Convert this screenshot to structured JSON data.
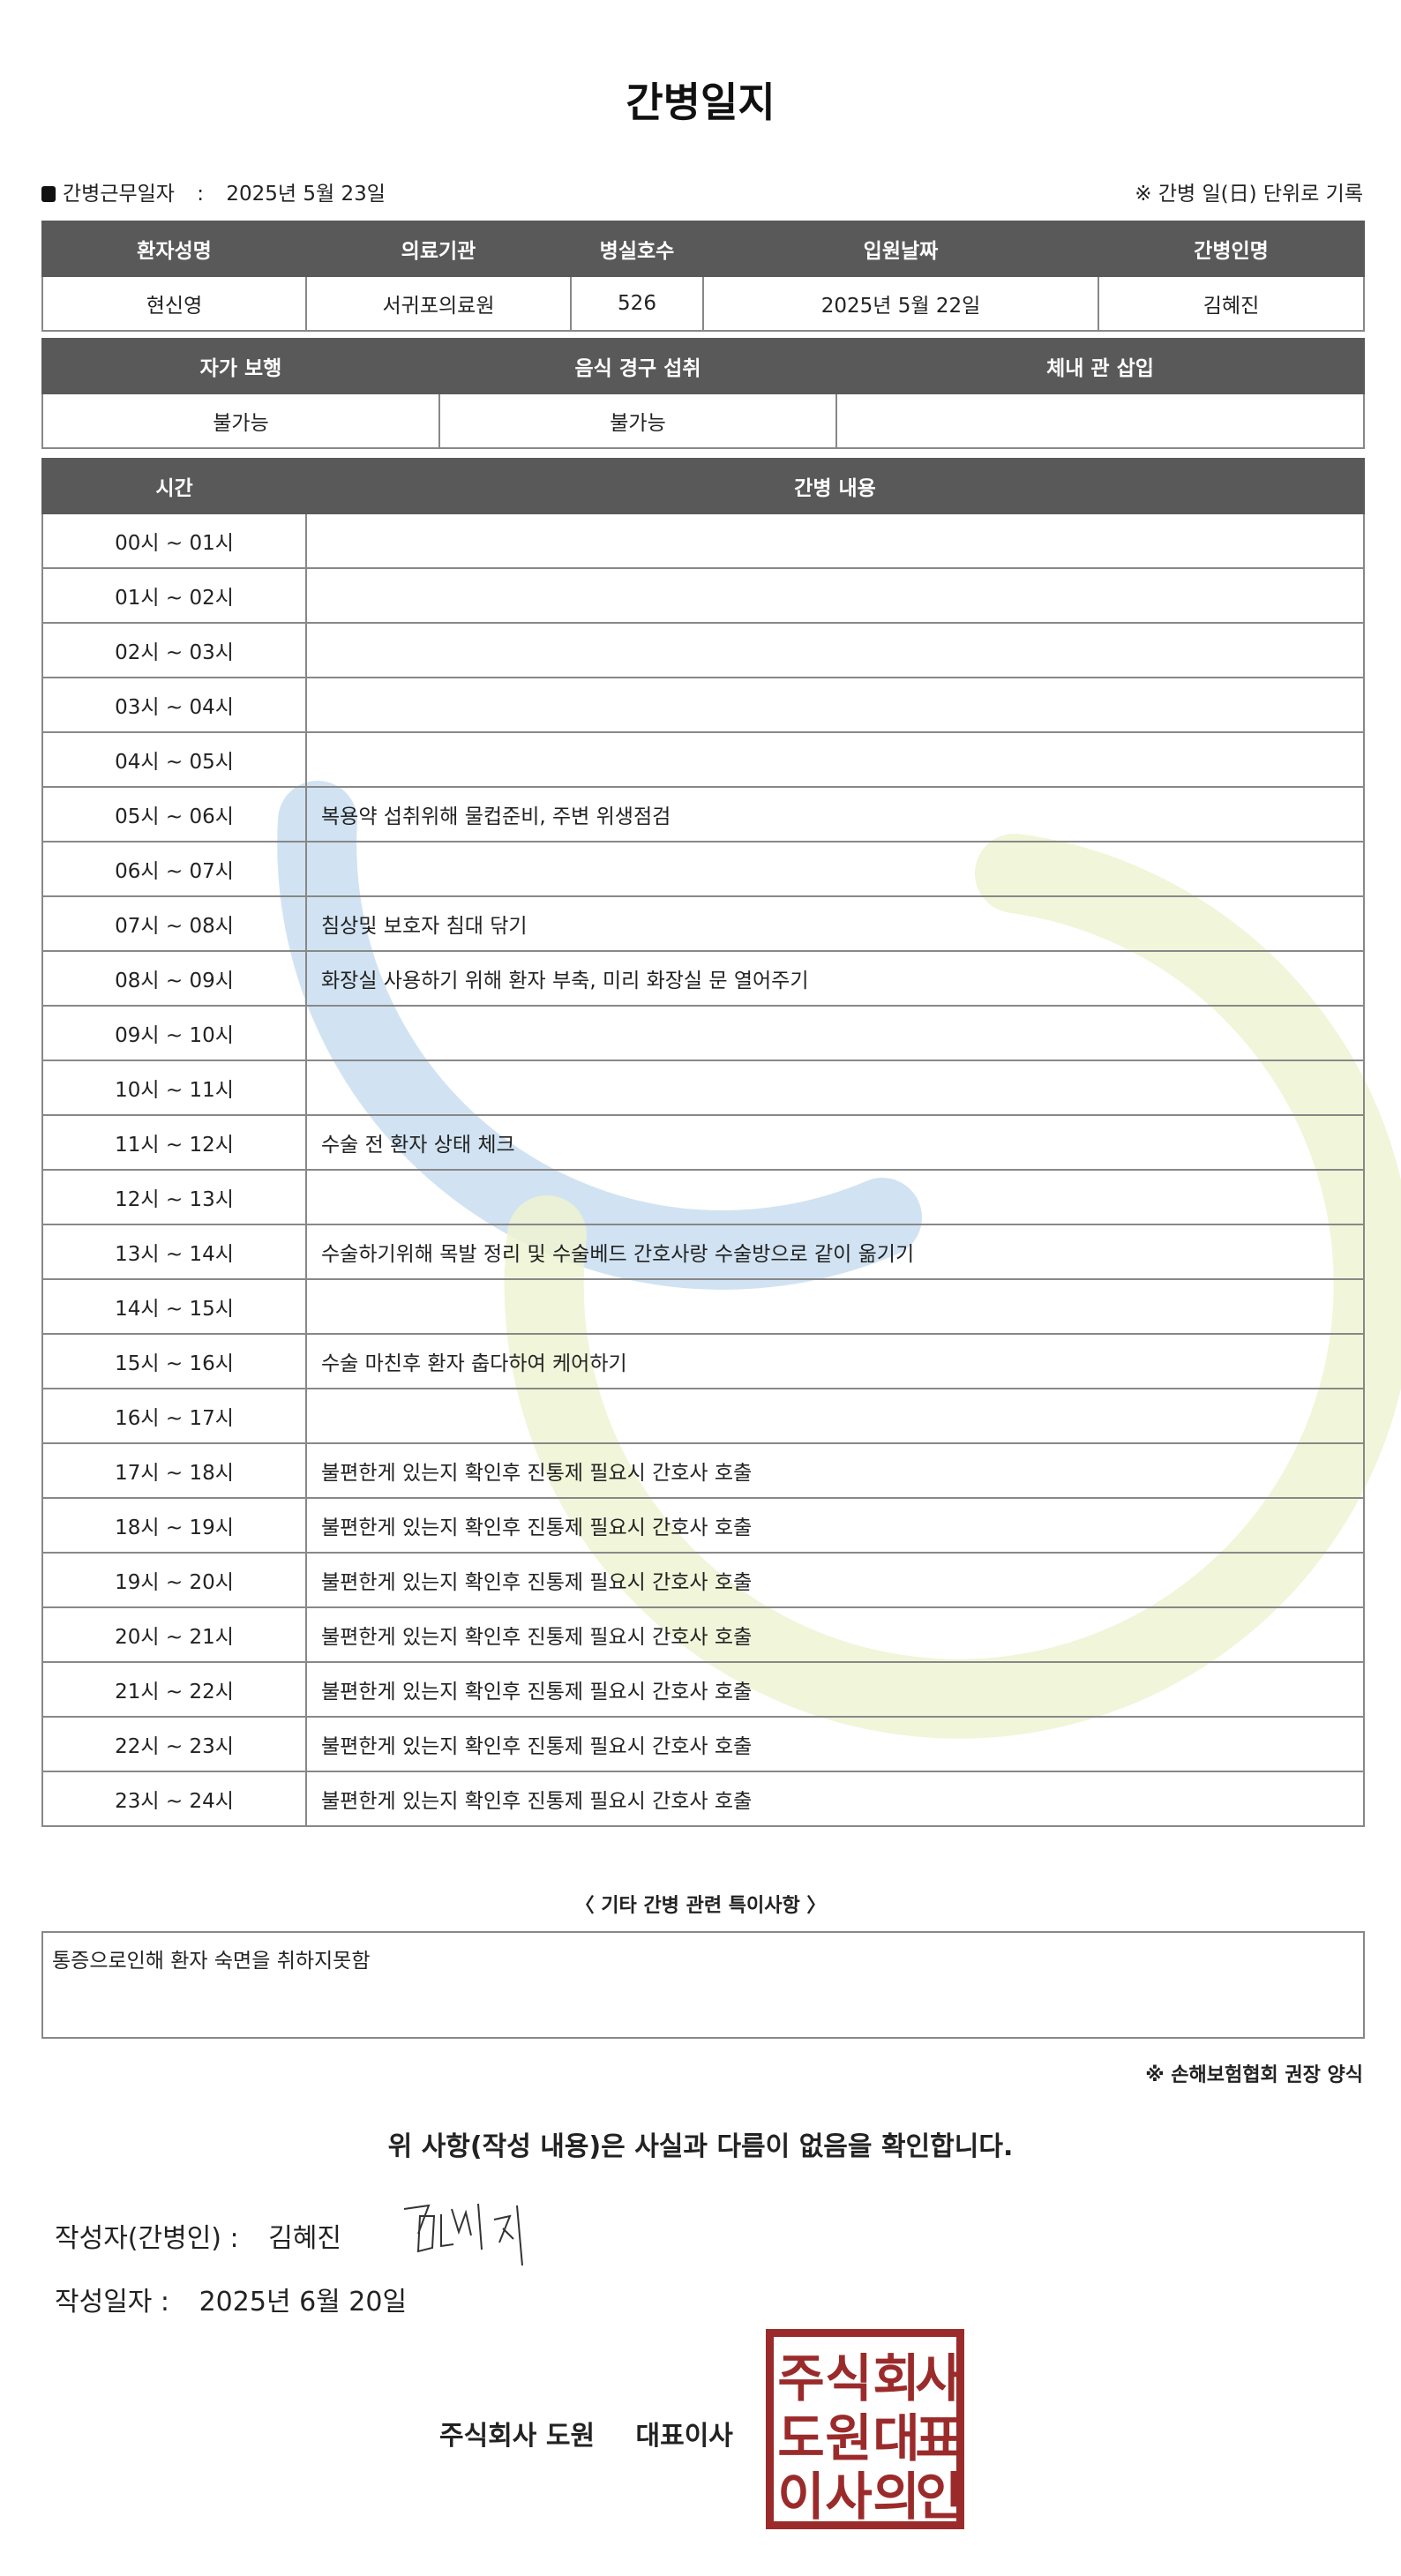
{
  "title": "간병일지",
  "work_date": {
    "label": "간병근무일자",
    "separator": ":",
    "value": "2025년 5월 23일"
  },
  "unit_note": "※ 간병 일(日) 단위로 기록",
  "patient_table": {
    "headers": [
      "환자성명",
      "의료기관",
      "병실호수",
      "입원날짜",
      "간병인명"
    ],
    "values": [
      "현신영",
      "서귀포의료원",
      "526",
      "2025년 5월 22일",
      "김혜진"
    ]
  },
  "status_table": {
    "headers": [
      "자가 보행",
      "음식 경구 섭취",
      "체내 관 삽입"
    ],
    "values": [
      "불가능",
      "불가능",
      ""
    ]
  },
  "care_table": {
    "headers": [
      "시간",
      "간병 내용"
    ],
    "rows": [
      {
        "time": "00시 ~ 01시",
        "content": ""
      },
      {
        "time": "01시 ~ 02시",
        "content": ""
      },
      {
        "time": "02시 ~ 03시",
        "content": ""
      },
      {
        "time": "03시 ~ 04시",
        "content": ""
      },
      {
        "time": "04시 ~ 05시",
        "content": ""
      },
      {
        "time": "05시 ~ 06시",
        "content": "복용약 섭취위해 물컵준비, 주변 위생점검"
      },
      {
        "time": "06시 ~ 07시",
        "content": ""
      },
      {
        "time": "07시 ~ 08시",
        "content": "침상및 보호자 침대 닦기"
      },
      {
        "time": "08시 ~ 09시",
        "content": "화장실 사용하기 위해 환자 부축, 미리 화장실 문 열어주기"
      },
      {
        "time": "09시 ~ 10시",
        "content": ""
      },
      {
        "time": "10시 ~ 11시",
        "content": ""
      },
      {
        "time": "11시 ~ 12시",
        "content": "수술 전 환자 상태 체크"
      },
      {
        "time": "12시 ~ 13시",
        "content": ""
      },
      {
        "time": "13시 ~ 14시",
        "content": "수술하기위해 목발 정리 및 수술베드 간호사랑 수술방으로 같이 옮기기"
      },
      {
        "time": "14시 ~ 15시",
        "content": ""
      },
      {
        "time": "15시 ~ 16시",
        "content": "수술 마친후 환자 춥다하여 케어하기"
      },
      {
        "time": "16시 ~ 17시",
        "content": ""
      },
      {
        "time": "17시 ~ 18시",
        "content": "불편한게 있는지 확인후 진통제 필요시 간호사 호출"
      },
      {
        "time": "18시 ~ 19시",
        "content": "불편한게 있는지 확인후 진통제 필요시 간호사 호출"
      },
      {
        "time": "19시 ~ 20시",
        "content": "불편한게 있는지 확인후 진통제 필요시 간호사 호출"
      },
      {
        "time": "20시 ~ 21시",
        "content": "불편한게 있는지 확인후 진통제 필요시 간호사 호출"
      },
      {
        "time": "21시 ~ 22시",
        "content": "불편한게 있는지 확인후 진통제 필요시 간호사 호출"
      },
      {
        "time": "22시 ~ 23시",
        "content": "불편한게 있는지 확인후 진통제 필요시 간호사 호출"
      },
      {
        "time": "23시 ~ 24시",
        "content": "불편한게 있는지 확인후 진통제 필요시 간호사 호출"
      }
    ]
  },
  "other_notes": {
    "heading": "〈 기타 간병 관련 특이사항 〉",
    "text": "통증으로인해 환자 숙면을 취하지못함"
  },
  "form_note": "※ 손해보험협회 권장 양식",
  "confirmation": "위 사항(작성 내용)은 사실과 다름이 없음을 확인합니다.",
  "writer": {
    "label": "작성자(간병인) :",
    "name": "김혜진",
    "signature": "김혜진"
  },
  "write_date": {
    "label": "작성일자 :",
    "value": "2025년 6월 20일"
  },
  "company": {
    "name": "주식회사 도원",
    "title": "대표이사",
    "seal_text": "주식회사도원대표이사의인"
  },
  "colors": {
    "header_bg": "#595959",
    "seal": "#9b2b2b",
    "watermark_blue": "#c9def0",
    "watermark_green": "#eef3d2"
  }
}
